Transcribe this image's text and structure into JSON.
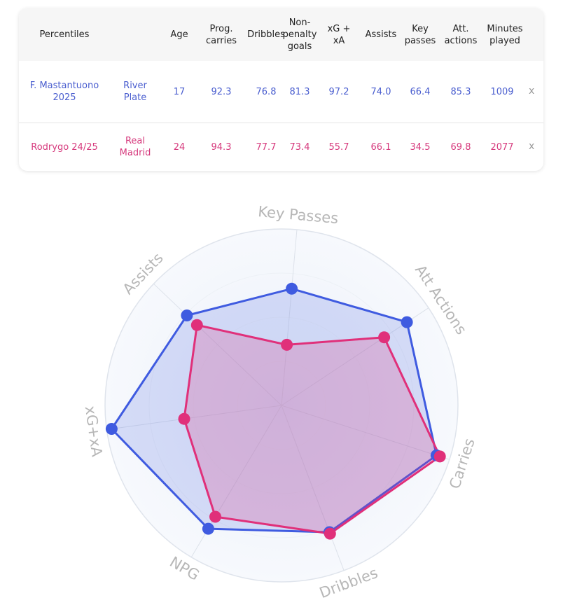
{
  "table": {
    "headers": [
      "Percentiles",
      "Age",
      "Prog. carries",
      "Dribbles",
      "Non-penalty goals",
      "xG + xA",
      "Assists",
      "Key passes",
      "Att. actions",
      "Minutes played"
    ],
    "rows": [
      {
        "name": "F. Mastantuono 2025",
        "team": "River Plate",
        "values": [
          "17",
          "92.3",
          "76.8",
          "81.3",
          "97.2",
          "74.0",
          "66.4",
          "85.3",
          "1009"
        ],
        "remove": "x",
        "color": "#4a5ecf"
      },
      {
        "name": "Rodrygo 24/25",
        "team": "Real Madrid",
        "values": [
          "24",
          "94.3",
          "77.7",
          "73.4",
          "55.7",
          "66.1",
          "34.5",
          "69.8",
          "2077"
        ],
        "remove": "x",
        "color": "#d63a7d"
      }
    ]
  },
  "chart_data": {
    "type": "radar",
    "axes": [
      "Key Passes",
      "Att Actions",
      "Carries",
      "Dribbles",
      "NPG",
      "xG+xA",
      "Assists"
    ],
    "range": [
      0,
      100
    ],
    "series": [
      {
        "values": [
          66.4,
          85.3,
          92.3,
          76.8,
          81.3,
          97.2,
          74.0
        ],
        "color": "#3f5be0"
      },
      {
        "values": [
          34.5,
          69.8,
          94.3,
          77.7,
          73.4,
          55.7,
          66.1
        ],
        "color": "#e0307a"
      }
    ]
  }
}
